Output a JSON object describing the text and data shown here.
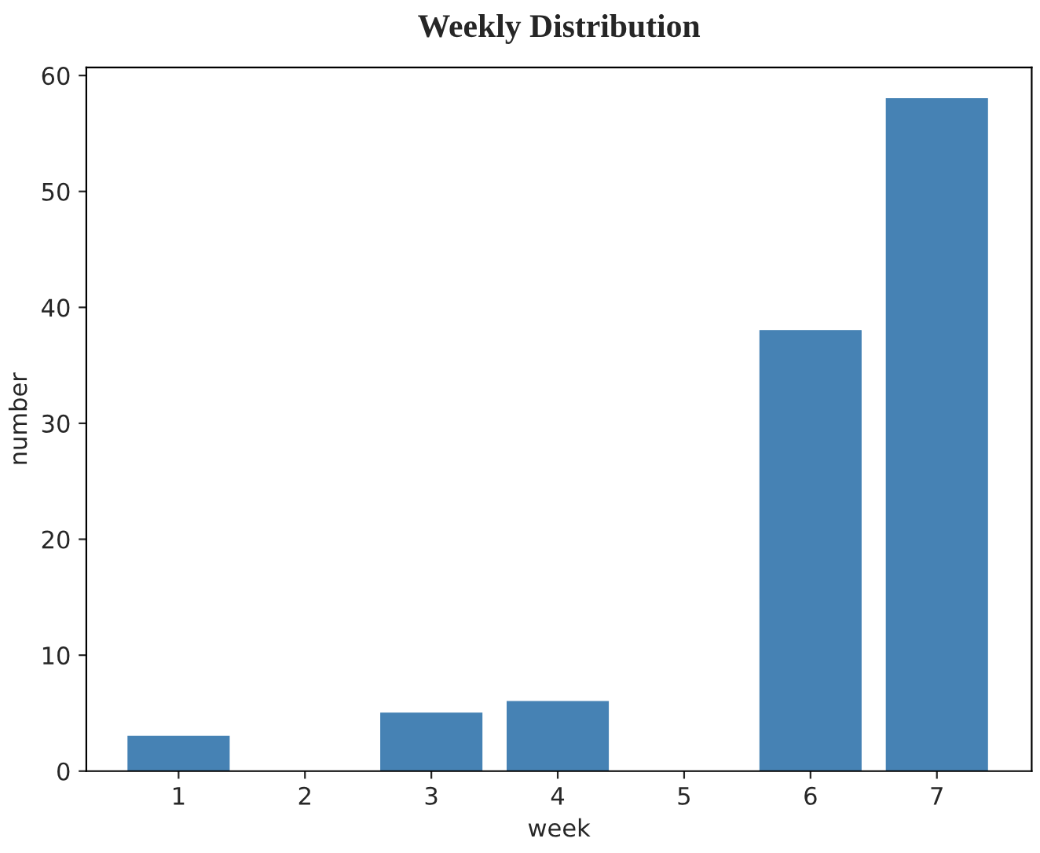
{
  "chart_data": {
    "type": "bar",
    "title": "Weekly Distribution",
    "xlabel": "week",
    "ylabel": "number",
    "categories": [
      "1",
      "2",
      "3",
      "4",
      "5",
      "6",
      "7"
    ],
    "values": [
      3,
      0,
      5,
      6,
      0,
      38,
      58
    ],
    "color": "#4682b4",
    "ylim": [
      0,
      60.7
    ],
    "yticks": [
      0,
      10,
      20,
      30,
      40,
      50,
      60
    ],
    "grid": false,
    "legend": false
  }
}
